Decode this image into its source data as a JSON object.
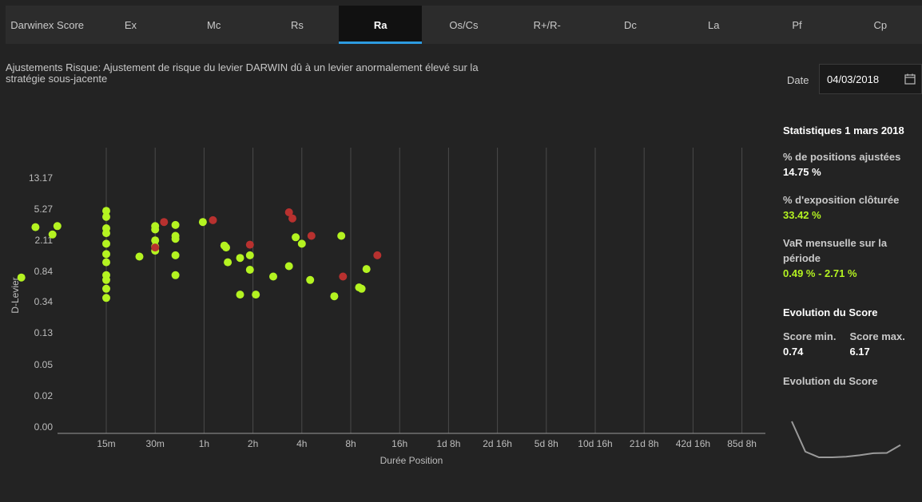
{
  "tabs": [
    {
      "label": "Darwinex Score",
      "active": false
    },
    {
      "label": "Ex",
      "active": false
    },
    {
      "label": "Mc",
      "active": false
    },
    {
      "label": "Rs",
      "active": false
    },
    {
      "label": "Ra",
      "active": true
    },
    {
      "label": "Os/Cs",
      "active": false
    },
    {
      "label": "R+/R-",
      "active": false
    },
    {
      "label": "Dc",
      "active": false
    },
    {
      "label": "La",
      "active": false
    },
    {
      "label": "Pf",
      "active": false
    },
    {
      "label": "Cp",
      "active": false
    }
  ],
  "description": "Ajustements Risque: Ajustement de risque du levier DARWIN dû à un levier anormalement élevé sur la stratégie sous-jacente",
  "date": {
    "label": "Date",
    "value": "04/03/2018"
  },
  "stats": {
    "title": "Statistiques 1 mars 2018",
    "pct_adjusted_label": "% de positions ajustées",
    "pct_adjusted_value": "14.75 %",
    "pct_exposure_label": "% d'exposition clôturée",
    "pct_exposure_value": "33.42 %",
    "var_label": "VaR mensuelle sur la période",
    "var_value": "0.49 % - 2.71 %",
    "evolution_title": "Evolution du Score",
    "score_min_label": "Score min.",
    "score_min_value": "0.74",
    "score_max_label": "Score max.",
    "score_max_value": "6.17",
    "evolution_subtitle": "Evolution du Score"
  },
  "colors": {
    "accent": "#2d9be0",
    "green": "#b4f321",
    "red": "#b8312f"
  },
  "chart_data": {
    "type": "scatter",
    "xlabel": "Durée Position",
    "ylabel": "D-Levier",
    "x_ticks": [
      "15m",
      "30m",
      "1h",
      "2h",
      "4h",
      "8h",
      "16h",
      "1d 8h",
      "2d 16h",
      "5d 8h",
      "10d 16h",
      "21d 8h",
      "42d 16h",
      "85d 8h"
    ],
    "y_ticks": [
      "0.00",
      "0.02",
      "0.05",
      "0.13",
      "0.34",
      "0.84",
      "2.11",
      "5.27",
      "13.17"
    ],
    "scale": "log2 (x, minutes), log (y)",
    "series": [
      {
        "color": "green",
        "points": [
          [
            4.5,
            0.7
          ],
          [
            5.5,
            3.1
          ],
          [
            7,
            2.5
          ],
          [
            7.5,
            3.2
          ],
          [
            15,
            5.0
          ],
          [
            15,
            4.2
          ],
          [
            15,
            3.0
          ],
          [
            15,
            2.6
          ],
          [
            15,
            1.9
          ],
          [
            15,
            1.4
          ],
          [
            15,
            1.1
          ],
          [
            15,
            0.75
          ],
          [
            15,
            0.65
          ],
          [
            15,
            0.5
          ],
          [
            15,
            0.38
          ],
          [
            24,
            1.3
          ],
          [
            30,
            3.2
          ],
          [
            30,
            2.9
          ],
          [
            30,
            2.1
          ],
          [
            30,
            1.75
          ],
          [
            30,
            1.55
          ],
          [
            40,
            3.3
          ],
          [
            40,
            2.4
          ],
          [
            40,
            2.2
          ],
          [
            40,
            1.35
          ],
          [
            40,
            0.75
          ],
          [
            59,
            3.6
          ],
          [
            80,
            1.8
          ],
          [
            82,
            1.7
          ],
          [
            84,
            1.1
          ],
          [
            100,
            1.25
          ],
          [
            100,
            0.42
          ],
          [
            115,
            1.35
          ],
          [
            115,
            0.88
          ],
          [
            125,
            0.42
          ],
          [
            160,
            0.72
          ],
          [
            200,
            0.98
          ],
          [
            220,
            2.3
          ],
          [
            240,
            1.9
          ],
          [
            270,
            0.65
          ],
          [
            380,
            0.4
          ],
          [
            420,
            2.4
          ],
          [
            540,
            0.52
          ],
          [
            560,
            0.5
          ],
          [
            600,
            0.9
          ]
        ]
      },
      {
        "color": "red",
        "points": [
          [
            30,
            1.7
          ],
          [
            34,
            3.6
          ],
          [
            68,
            3.8
          ],
          [
            115,
            1.85
          ],
          [
            200,
            4.8
          ],
          [
            210,
            4.0
          ],
          [
            275,
            2.4
          ],
          [
            430,
            0.72
          ],
          [
            700,
            1.35
          ]
        ]
      }
    ]
  },
  "score_evolution": [
    6.17,
    1.6,
    0.74,
    0.74,
    0.82,
    1.05,
    1.35,
    1.4,
    2.6
  ]
}
